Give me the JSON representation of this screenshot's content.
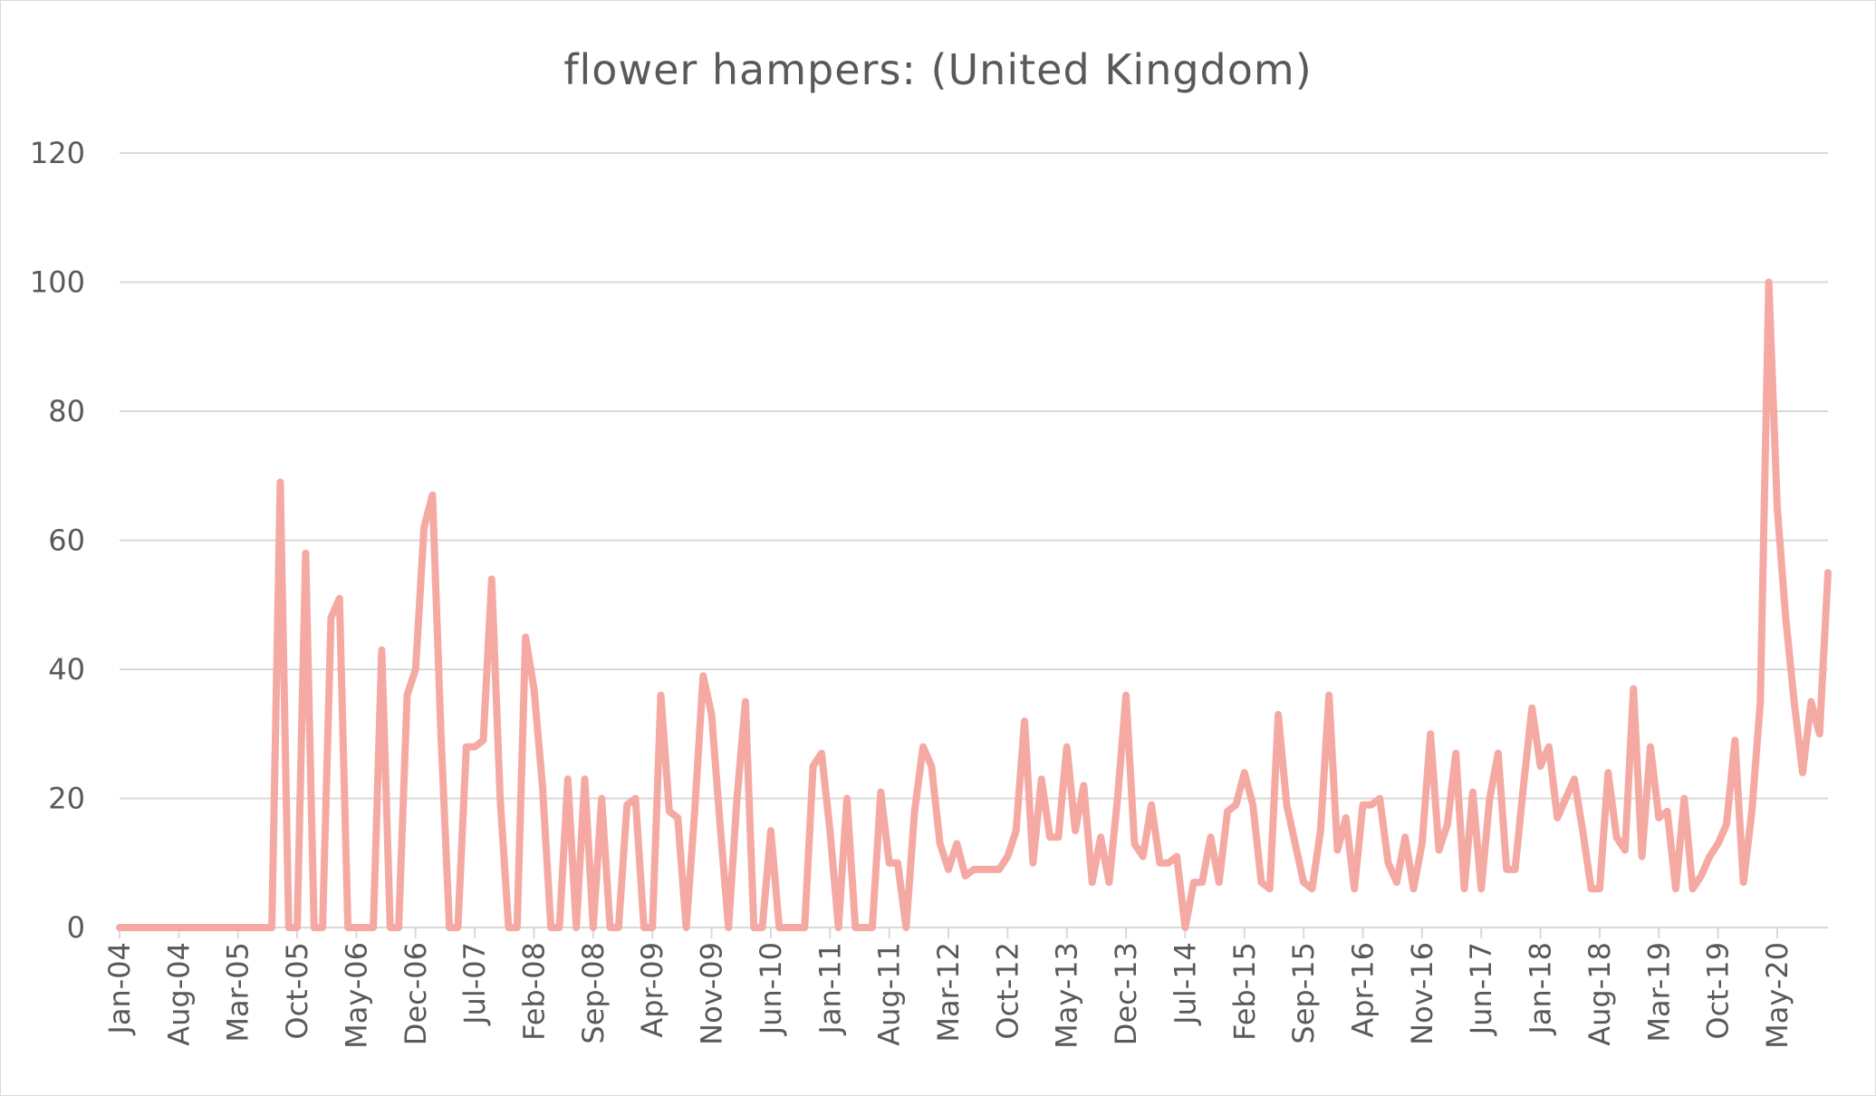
{
  "chart_data": {
    "type": "line",
    "title": "flower hampers: (United Kingdom)",
    "xlabel": "",
    "ylabel": "",
    "ylim": [
      0,
      120
    ],
    "yticks": [
      0,
      20,
      40,
      60,
      80,
      100,
      120
    ],
    "grid": true,
    "legend": "none",
    "line_color": "#f4aaa3",
    "x_tick_labels": [
      "Jan-04",
      "Aug-04",
      "Mar-05",
      "Oct-05",
      "May-06",
      "Dec-06",
      "Jul-07",
      "Feb-08",
      "Sep-08",
      "Apr-09",
      "Nov-09",
      "Jun-10",
      "Jan-11",
      "Aug-11",
      "Mar-12",
      "Oct-12",
      "May-13",
      "Dec-13",
      "Jul-14",
      "Feb-15",
      "Sep-15",
      "Apr-16",
      "Nov-16",
      "Jun-17",
      "Jan-18",
      "Aug-18",
      "Mar-19",
      "Oct-19",
      "May-20"
    ],
    "series": [
      {
        "values": [
          0,
          0,
          0,
          0,
          0,
          0,
          0,
          0,
          0,
          0,
          0,
          0,
          0,
          0,
          0,
          0,
          0,
          0,
          0,
          69,
          0,
          0,
          58,
          0,
          0,
          48,
          51,
          0,
          0,
          0,
          0,
          43,
          0,
          0,
          36,
          40,
          62,
          67,
          30,
          0,
          0,
          28,
          28,
          29,
          54,
          20,
          0,
          0,
          45,
          37,
          22,
          0,
          0,
          23,
          0,
          23,
          0,
          20,
          0,
          0,
          19,
          20,
          0,
          0,
          36,
          18,
          17,
          0,
          18,
          39,
          33,
          16,
          0,
          20,
          35,
          0,
          0,
          15,
          0,
          0,
          0,
          0,
          25,
          27,
          15,
          0,
          20,
          0,
          0,
          0,
          21,
          10,
          10,
          0,
          18,
          28,
          25,
          13,
          9,
          13,
          8,
          9,
          9,
          9,
          9,
          11,
          15,
          32,
          10,
          23,
          14,
          14,
          28,
          15,
          22,
          7,
          14,
          7,
          20,
          36,
          13,
          11,
          19,
          10,
          10,
          11,
          0,
          7,
          7,
          14,
          7,
          18,
          19,
          24,
          19,
          7,
          6,
          33,
          19,
          13,
          7,
          6,
          15,
          36,
          12,
          17,
          6,
          19,
          19,
          20,
          10,
          7,
          14,
          6,
          13,
          30,
          12,
          16,
          27,
          6,
          21,
          6,
          20,
          27,
          9,
          9,
          22,
          34,
          25,
          28,
          17,
          20,
          23,
          15,
          6,
          6,
          24,
          14,
          12,
          37,
          11,
          28,
          17,
          18,
          6,
          20,
          6,
          8,
          11,
          13,
          16,
          29,
          7,
          18,
          35,
          100,
          65,
          48,
          35,
          24,
          35,
          30,
          55
        ]
      }
    ]
  }
}
